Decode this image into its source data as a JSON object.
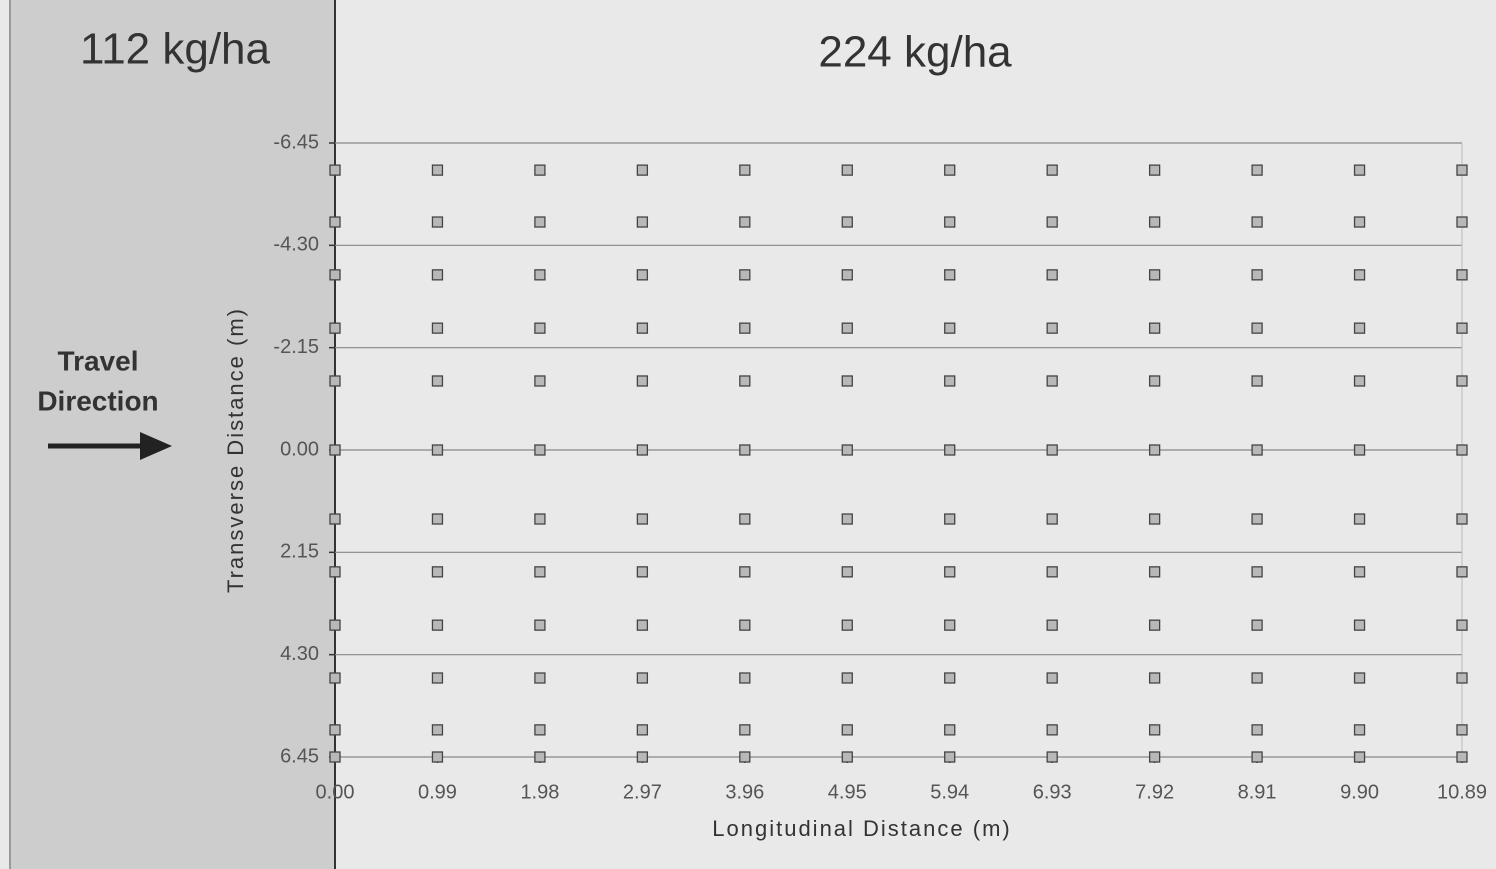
{
  "chart_data": {
    "type": "scatter",
    "left_label": "112 kg/ha",
    "right_label": "224 kg/ha",
    "annotation": [
      "Travel",
      "Direction"
    ],
    "xlabel": "Longitudinal Distance (m)",
    "ylabel": "Transverse Distance (m)",
    "x": [
      0,
      0.99,
      1.98,
      2.97,
      3.96,
      4.95,
      5.94,
      6.93,
      7.92,
      8.91,
      9.9,
      10.89,
      0,
      0.99,
      1.98,
      2.97,
      3.96,
      4.95,
      5.94,
      6.93,
      7.92,
      8.91,
      9.9,
      10.89,
      0,
      0.99,
      1.98,
      2.97,
      3.96,
      4.95,
      5.94,
      6.93,
      7.92,
      8.91,
      9.9,
      10.89,
      0,
      0.99,
      1.98,
      2.97,
      3.96,
      4.95,
      5.94,
      6.93,
      7.92,
      8.91,
      9.9,
      10.89,
      0,
      0.99,
      1.98,
      2.97,
      3.96,
      4.95,
      5.94,
      6.93,
      7.92,
      8.91,
      9.9,
      10.89,
      0,
      0.99,
      1.98,
      2.97,
      3.96,
      4.95,
      5.94,
      6.93,
      7.92,
      8.91,
      9.9,
      10.89,
      0,
      0.99,
      1.98,
      2.97,
      3.96,
      4.95,
      5.94,
      6.93,
      7.92,
      8.91,
      9.9,
      10.89,
      0,
      0.99,
      1.98,
      2.97,
      3.96,
      4.95,
      5.94,
      6.93,
      7.92,
      8.91,
      9.9,
      10.89,
      0,
      0.99,
      1.98,
      2.97,
      3.96,
      4.95,
      5.94,
      6.93,
      7.92,
      8.91,
      9.9,
      10.89,
      0,
      0.99,
      1.98,
      2.97,
      3.96,
      4.95,
      5.94,
      6.93,
      7.92,
      8.91,
      9.9,
      10.89,
      0,
      0.99,
      1.98,
      2.97,
      3.96,
      4.95,
      5.94,
      6.93,
      7.92,
      8.91,
      9.9,
      10.89,
      0,
      0.99,
      1.98,
      2.97,
      3.96,
      4.95,
      5.94,
      6.93,
      7.92,
      8.91,
      9.9,
      10.89
    ],
    "values": [
      -5.88,
      -5.88,
      -5.88,
      -5.88,
      -5.88,
      -5.88,
      -5.88,
      -5.88,
      -5.88,
      -5.88,
      -5.88,
      -5.88,
      -4.79,
      -4.79,
      -4.79,
      -4.79,
      -4.79,
      -4.79,
      -4.79,
      -4.79,
      -4.79,
      -4.79,
      -4.79,
      -4.79,
      -3.68,
      -3.68,
      -3.68,
      -3.68,
      -3.68,
      -3.68,
      -3.68,
      -3.68,
      -3.68,
      -3.68,
      -3.68,
      -3.68,
      -2.56,
      -2.56,
      -2.56,
      -2.56,
      -2.56,
      -2.56,
      -2.56,
      -2.56,
      -2.56,
      -2.56,
      -2.56,
      -2.56,
      -1.45,
      -1.45,
      -1.45,
      -1.45,
      -1.45,
      -1.45,
      -1.45,
      -1.45,
      -1.45,
      -1.45,
      -1.45,
      -1.45,
      0,
      0,
      0,
      0,
      0,
      0,
      0,
      0,
      0,
      0,
      0,
      0,
      1.45,
      1.45,
      1.45,
      1.45,
      1.45,
      1.45,
      1.45,
      1.45,
      1.45,
      1.45,
      1.45,
      1.45,
      2.56,
      2.56,
      2.56,
      2.56,
      2.56,
      2.56,
      2.56,
      2.56,
      2.56,
      2.56,
      2.56,
      2.56,
      3.68,
      3.68,
      3.68,
      3.68,
      3.68,
      3.68,
      3.68,
      3.68,
      3.68,
      3.68,
      3.68,
      3.68,
      4.79,
      4.79,
      4.79,
      4.79,
      4.79,
      4.79,
      4.79,
      4.79,
      4.79,
      4.79,
      4.79,
      4.79,
      5.88,
      5.88,
      5.88,
      5.88,
      5.88,
      5.88,
      5.88,
      5.88,
      5.88,
      5.88,
      5.88,
      5.88,
      6.45,
      6.45,
      6.45,
      6.45,
      6.45,
      6.45,
      6.45,
      6.45,
      6.45,
      6.45,
      6.45,
      6.45
    ],
    "color": "#b8b8b8",
    "xlim": [
      0,
      10.89
    ],
    "xticks": [
      {
        "value": 0,
        "label": "0.00"
      },
      0.99,
      1.98,
      2.97,
      3.96,
      4.95,
      5.94,
      6.93,
      7.92,
      8.91,
      {
        "value": 9.9,
        "label": "9.90"
      },
      10.89
    ],
    "ylim": [
      -6.45,
      6.45
    ],
    "y_reversed": true,
    "yticks": [
      -6.45,
      {
        "value": -4.3,
        "label": "-4.30"
      },
      -2.15,
      {
        "value": 0,
        "label": "0.00"
      },
      2.15,
      {
        "value": 4.3,
        "label": "4.30"
      },
      6.45
    ],
    "grid": true
  }
}
